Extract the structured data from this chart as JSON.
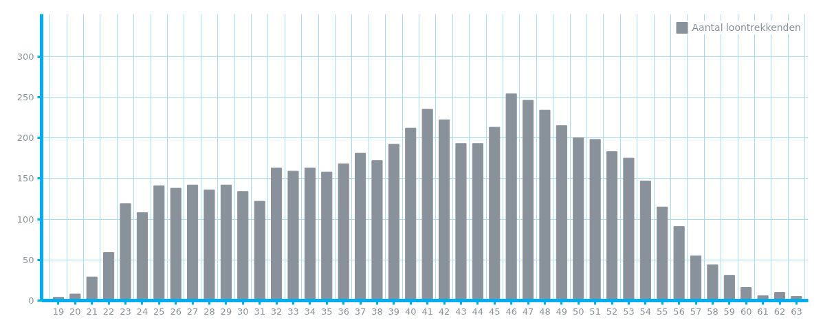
{
  "chart_data": {
    "type": "bar",
    "categories": [
      "19",
      "20",
      "21",
      "22",
      "23",
      "24",
      "25",
      "26",
      "27",
      "28",
      "29",
      "30",
      "31",
      "32",
      "33",
      "34",
      "35",
      "36",
      "37",
      "38",
      "39",
      "40",
      "41",
      "42",
      "43",
      "44",
      "45",
      "46",
      "47",
      "48",
      "49",
      "50",
      "51",
      "52",
      "53",
      "54",
      "55",
      "56",
      "57",
      "58",
      "59",
      "60",
      "61",
      "62",
      "63"
    ],
    "series": [
      {
        "name": "Aantal loontrekkenden",
        "color": "#89929a",
        "values": [
          4,
          8,
          29,
          59,
          119,
          108,
          141,
          138,
          142,
          136,
          142,
          134,
          122,
          163,
          159,
          163,
          158,
          168,
          181,
          172,
          192,
          212,
          235,
          222,
          193,
          193,
          213,
          254,
          246,
          234,
          215,
          200,
          198,
          183,
          175,
          147,
          115,
          91,
          55,
          44,
          31,
          16,
          6,
          10,
          5
        ]
      }
    ],
    "ylim": [
      0,
      352
    ],
    "yticks": [
      0,
      50,
      100,
      150,
      200,
      250,
      300
    ],
    "grid": true,
    "legend": "top right"
  }
}
